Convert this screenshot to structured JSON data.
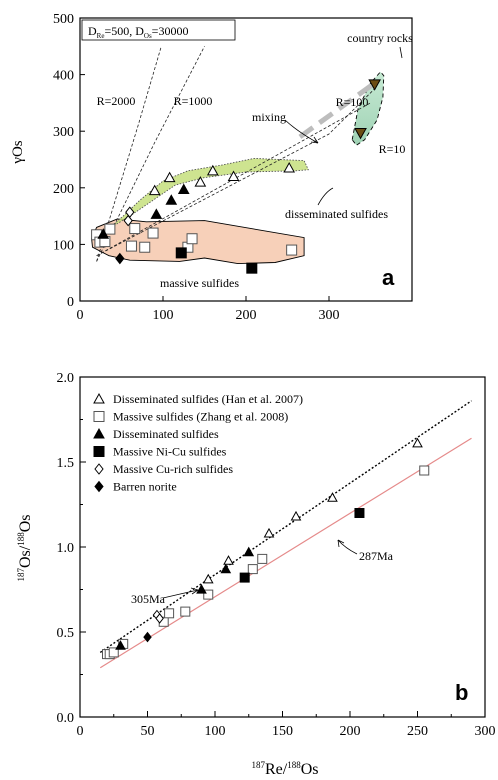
{
  "chart_data": [
    {
      "type": "scatter",
      "panel_label": "a",
      "ylabel": "γOs",
      "xlabel": "",
      "xlim": [
        0,
        400
      ],
      "ylim": [
        0,
        500
      ],
      "xticks": [
        "0",
        "100",
        "200",
        "300"
      ],
      "yticks": [
        "0",
        "100",
        "200",
        "300",
        "400",
        "500"
      ],
      "grid": false,
      "box_label": {
        "main": "D",
        "sub_re": "Re",
        "mid": "=500, D",
        "sub_os": "Os",
        "tail": "=30000"
      },
      "annotations": {
        "country_rocks": "country rocks",
        "r100": "R=100",
        "r10": "R=10",
        "r2000": "R=2000",
        "r1000": "R=1000",
        "mixing": "mixing",
        "disseminated": "disseminated sulfides",
        "massive": "massive sulfides"
      },
      "mixing_lines": [
        {
          "name": "R=2000",
          "points": [
            [
              20,
              70
            ],
            [
              70,
              310
            ],
            [
              98,
              450
            ]
          ]
        },
        {
          "name": "R=1000",
          "points": [
            [
              20,
              70
            ],
            [
              90,
              280
            ],
            [
              150,
              450
            ]
          ]
        },
        {
          "name": "R=100",
          "points": [
            [
              20,
              80
            ],
            [
              300,
              295
            ],
            [
              355,
              375
            ]
          ]
        },
        {
          "name": "R=10",
          "points": [
            [
              20,
              80
            ],
            [
              350,
              350
            ]
          ]
        }
      ],
      "mixing_trend": [
        [
          265,
          290
        ],
        [
          355,
          385
        ]
      ],
      "fields": {
        "disseminated": {
          "color": "#c5df7c"
        },
        "massive": {
          "color": "#f6c8ad"
        },
        "country": {
          "color": "#a8d8bb"
        }
      },
      "series": [
        {
          "name": "open-triangle",
          "points": [
            [
              90,
              195
            ],
            [
              108,
              218
            ],
            [
              145,
              210
            ],
            [
              160,
              230
            ],
            [
              185,
              220
            ],
            [
              252,
              235
            ]
          ]
        },
        {
          "name": "open-square",
          "points": [
            [
              20,
              117
            ],
            [
              24,
              104
            ],
            [
              30,
              105
            ],
            [
              36,
              127
            ],
            [
              62,
              97
            ],
            [
              66,
              128
            ],
            [
              78,
              95
            ],
            [
              88,
              120
            ],
            [
              130,
              95
            ],
            [
              135,
              110
            ],
            [
              255,
              90
            ]
          ]
        },
        {
          "name": "filled-triangle",
          "points": [
            [
              28,
              118
            ],
            [
              92,
              153
            ],
            [
              110,
              178
            ],
            [
              125,
              197
            ]
          ]
        },
        {
          "name": "filled-square",
          "points": [
            [
              122,
              85
            ],
            [
              207,
              58
            ]
          ]
        },
        {
          "name": "open-diamond",
          "points": [
            [
              58,
              142
            ],
            [
              60,
              157
            ]
          ]
        },
        {
          "name": "filled-diamond",
          "points": [
            [
              48,
              75
            ]
          ]
        },
        {
          "name": "country-rock",
          "points": [
            [
              338,
              297
            ],
            [
              355,
              383
            ]
          ]
        }
      ]
    },
    {
      "type": "scatter",
      "panel_label": "b",
      "xlabel": {
        "sup1": "187",
        "main1": "Re/",
        "sup2": "188",
        "main2": "Os"
      },
      "ylabel": {
        "sup1": "187",
        "main1": "Os/",
        "sup2": "188",
        "main2": "Os"
      },
      "xlim": [
        0,
        300
      ],
      "ylim": [
        0.0,
        2.0
      ],
      "xticks": [
        "0",
        "50",
        "100",
        "150",
        "200",
        "250",
        "300"
      ],
      "yticks": [
        "0.0",
        "0.5",
        "1.0",
        "1.5",
        "2.0"
      ],
      "grid": false,
      "legend_position": "top-left",
      "legend": [
        {
          "symbol": "open-triangle",
          "label": "Disseminated sulfides (Han et al. 2007)"
        },
        {
          "symbol": "open-square",
          "label": "Massive sulfides (Zhang et al. 2008)"
        },
        {
          "symbol": "filled-triangle",
          "label": "Disseminated sulfides"
        },
        {
          "symbol": "filled-square",
          "label": "Massive Ni-Cu sulfides"
        },
        {
          "symbol": "open-diamond",
          "label": "Massive Cu-rich sulfides"
        },
        {
          "symbol": "filled-diamond",
          "label": "Barren norite"
        }
      ],
      "isochrons": [
        {
          "label": "305Ma",
          "color": "#000000",
          "style": "dotted",
          "points": [
            [
              15,
              0.38
            ],
            [
              290,
              1.86
            ]
          ]
        },
        {
          "label": "287Ma",
          "color": "#e58a8a",
          "style": "solid",
          "points": [
            [
              15,
              0.29
            ],
            [
              290,
              1.64
            ]
          ]
        }
      ],
      "annotations": {
        "a305": "305Ma",
        "a287": "287Ma"
      },
      "series": [
        {
          "name": "open-triangle",
          "points": [
            [
              95,
              0.81
            ],
            [
              110,
              0.92
            ],
            [
              140,
              1.08
            ],
            [
              160,
              1.18
            ],
            [
              187,
              1.29
            ],
            [
              250,
              1.61
            ]
          ]
        },
        {
          "name": "open-square",
          "points": [
            [
              20,
              0.37
            ],
            [
              22,
              0.37
            ],
            [
              25,
              0.38
            ],
            [
              32,
              0.43
            ],
            [
              62,
              0.56
            ],
            [
              66,
              0.61
            ],
            [
              78,
              0.62
            ],
            [
              95,
              0.72
            ],
            [
              128,
              0.87
            ],
            [
              135,
              0.93
            ],
            [
              255,
              1.45
            ]
          ]
        },
        {
          "name": "filled-triangle",
          "points": [
            [
              30,
              0.42
            ],
            [
              90,
              0.75
            ],
            [
              108,
              0.87
            ],
            [
              125,
              0.97
            ]
          ]
        },
        {
          "name": "filled-square",
          "points": [
            [
              122,
              0.82
            ],
            [
              207,
              1.2
            ]
          ]
        },
        {
          "name": "open-diamond",
          "points": [
            [
              57,
              0.6
            ],
            [
              59,
              0.58
            ]
          ]
        },
        {
          "name": "filled-diamond",
          "points": [
            [
              50,
              0.47
            ]
          ]
        }
      ]
    }
  ]
}
